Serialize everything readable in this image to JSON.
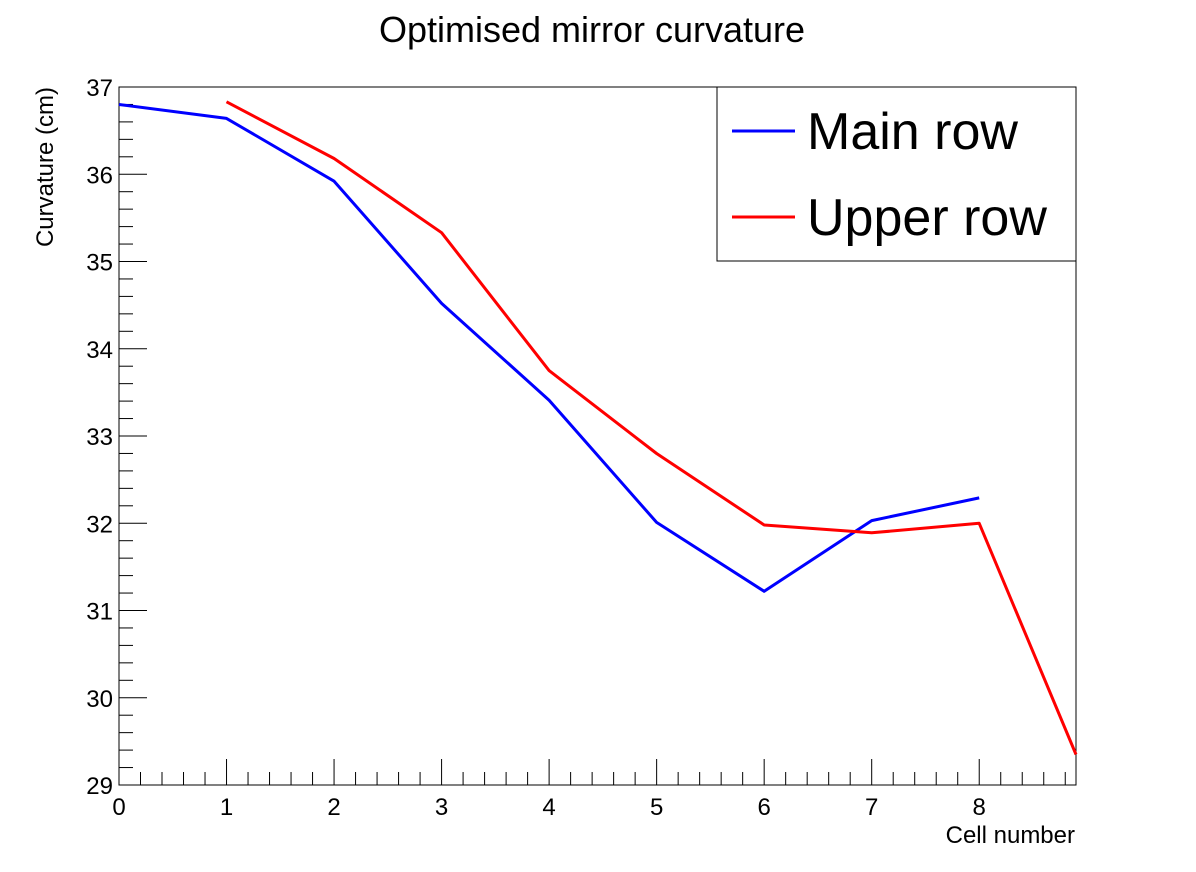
{
  "chart_data": {
    "type": "line",
    "title": "Optimised mirror curvature",
    "xlabel": "Cell number",
    "ylabel": "Curvature (cm)",
    "xlim": [
      0,
      8.9
    ],
    "ylim": [
      29,
      37
    ],
    "x_ticks": [
      "0",
      "1",
      "2",
      "3",
      "4",
      "5",
      "6",
      "7",
      "8"
    ],
    "y_ticks": [
      "29",
      "30",
      "31",
      "32",
      "33",
      "34",
      "35",
      "36",
      "37"
    ],
    "legend_position": "top-right",
    "series": [
      {
        "name": "Main row",
        "color": "#0000ff",
        "x": [
          0,
          1,
          2,
          3,
          4,
          5,
          6,
          7,
          8
        ],
        "y": [
          36.8,
          36.64,
          35.92,
          34.52,
          33.41,
          32.01,
          31.22,
          32.03,
          32.29
        ]
      },
      {
        "name": "Upper row",
        "color": "#ff0000",
        "x": [
          1,
          2,
          3,
          4,
          5,
          6,
          7,
          8,
          8.9
        ],
        "y": [
          36.83,
          36.18,
          35.33,
          33.75,
          32.8,
          31.98,
          31.89,
          32.0,
          29.35
        ]
      }
    ]
  }
}
